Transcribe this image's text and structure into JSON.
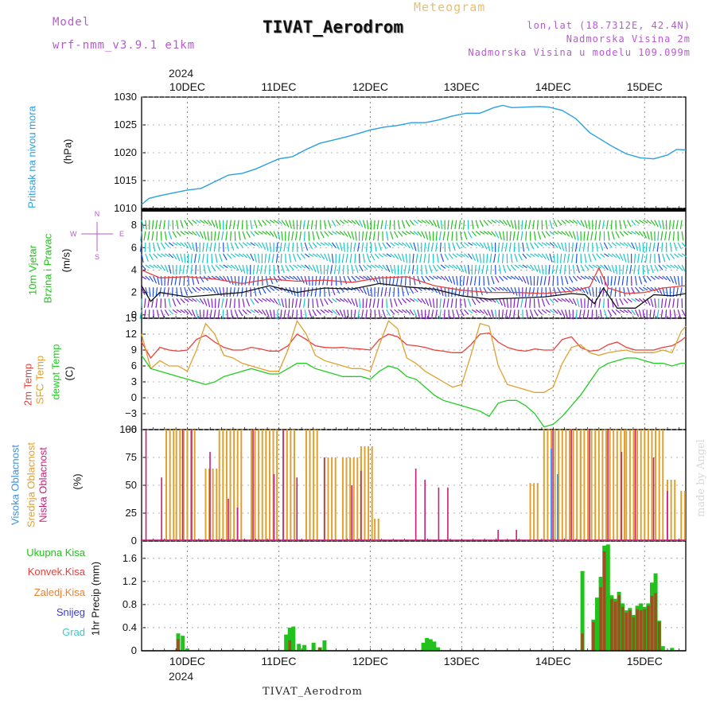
{
  "header": {
    "model_label": "Model",
    "model_name": "wrf-nmm_v3.9.1  e1km",
    "product": "Meteogram",
    "station": "TIVAT_Aerodrom",
    "lonlat": "lon,lat (18.7312E, 42.4N)",
    "elevation": "Nadmorska Visina 2m",
    "model_elevation": "Nadmorska Visina u modelu 109.099m"
  },
  "footer": {
    "station": "TIVAT_Aerodrom",
    "credit": "made by Angel"
  },
  "colors": {
    "pressure": "#2aa0e0",
    "wind_green": "#22c11c",
    "wind_cyan": "#18c8c8",
    "wind_blue": "#2050e8",
    "wind_purple": "#8020c8",
    "temp2m": "#e8403a",
    "sfc_temp": "#e0a030",
    "dewpt": "#22cc22",
    "cloud_high": "#3a90e0",
    "cloud_mid": "#e0a030",
    "cloud_low": "#c8207a",
    "precip_total": "#22c11c",
    "precip_conv": "#e8403a",
    "precip_strat": "#f08030",
    "snow": "#3a3ae0",
    "graupel": "#40c8c8"
  },
  "x_axis": {
    "year": "2024",
    "day_labels": [
      "10DEC",
      "11DEC",
      "12DEC",
      "13DEC",
      "14DEC",
      "15DEC"
    ],
    "range_days": [
      -0.5,
      5.45
    ]
  },
  "chart_data": [
    {
      "type": "line",
      "name": "pressure",
      "ylabel_main": "Pritisak na nivou mora",
      "ylabel_unit": "(hPa)",
      "ylim": [
        1010,
        1030
      ],
      "yticks": [
        1010,
        1015,
        1020,
        1025,
        1030
      ],
      "x": [
        -0.5,
        -0.42,
        -0.3,
        -0.15,
        0,
        0.15,
        0.3,
        0.45,
        0.6,
        0.75,
        0.9,
        1.0,
        1.15,
        1.3,
        1.45,
        1.6,
        1.75,
        1.9,
        2.0,
        2.15,
        2.3,
        2.45,
        2.6,
        2.75,
        2.9,
        3.05,
        3.2,
        3.35,
        3.45,
        3.55,
        3.7,
        3.85,
        3.95,
        4.1,
        4.25,
        4.4,
        4.5,
        4.65,
        4.8,
        4.95,
        5.1,
        5.25,
        5.35,
        5.45
      ],
      "y": [
        1010.7,
        1011.8,
        1012.3,
        1012.8,
        1013.3,
        1013.6,
        1014.8,
        1016.0,
        1016.3,
        1017.1,
        1018.2,
        1018.9,
        1019.3,
        1020.6,
        1021.7,
        1022.3,
        1022.9,
        1023.6,
        1024.1,
        1024.6,
        1024.9,
        1025.4,
        1025.4,
        1025.9,
        1026.6,
        1027.1,
        1027.1,
        1028.1,
        1028.5,
        1028.1,
        1028.2,
        1028.3,
        1028.2,
        1027.6,
        1026.1,
        1023.6,
        1022.6,
        1021.1,
        1019.8,
        1019.1,
        1018.9,
        1019.6,
        1020.6,
        1020.5
      ]
    },
    {
      "type": "line",
      "name": "wind",
      "ylabel_main": "10m Vjetar",
      "ylabel_sub": "Brzina i Pravac",
      "ylabel_unit": "(m/s)",
      "compass_labels": [
        "N",
        "W",
        "E",
        "S"
      ],
      "ylim": [
        -0.3,
        9.5
      ],
      "yticks": [
        0,
        2,
        4,
        6,
        8
      ],
      "series": [
        {
          "name": "speed",
          "x": [
            -0.5,
            -0.4,
            -0.3,
            0,
            0.3,
            0.6,
            0.9,
            1.2,
            1.5,
            1.8,
            2.1,
            2.4,
            2.7,
            3.0,
            3.3,
            3.6,
            3.9,
            4.2,
            4.35,
            4.45,
            4.55,
            4.7,
            4.9,
            5.1,
            5.3,
            5.45
          ],
          "y": [
            2.6,
            1.2,
            2.0,
            1.6,
            1.8,
            2.0,
            2.6,
            2.0,
            2.4,
            2.3,
            2.8,
            2.5,
            2.3,
            1.7,
            1.4,
            1.5,
            1.6,
            1.9,
            1.8,
            1.0,
            2.4,
            0.6,
            0.6,
            1.8,
            1.7,
            1.9
          ]
        },
        {
          "name": "gust",
          "x": [
            -0.5,
            -0.3,
            0,
            0.3,
            0.6,
            0.9,
            1.2,
            1.5,
            1.8,
            2.1,
            2.4,
            2.7,
            3.0,
            3.3,
            3.6,
            3.9,
            4.2,
            4.4,
            4.5,
            4.6,
            4.8,
            5.0,
            5.2,
            5.45
          ],
          "y": [
            4.0,
            3.3,
            3.4,
            3.2,
            2.8,
            3.2,
            3.0,
            3.1,
            2.9,
            3.3,
            3.4,
            2.6,
            2.2,
            2.0,
            2.0,
            1.9,
            2.1,
            2.5,
            4.2,
            2.4,
            1.9,
            2.0,
            2.4,
            2.6
          ]
        }
      ]
    },
    {
      "type": "line",
      "name": "temperature",
      "ylabel_main": "2m Temp",
      "ylabel_sub": "SFC Temp",
      "ylabel_sub2": "dewpt Temp",
      "ylabel_unit": "(C)",
      "ylim": [
        -6,
        15
      ],
      "yticks": [
        -6,
        -3,
        0,
        3,
        6,
        9,
        12,
        15
      ],
      "x": [
        -0.5,
        -0.4,
        -0.3,
        -0.2,
        -0.1,
        0,
        0.1,
        0.2,
        0.3,
        0.4,
        0.5,
        0.6,
        0.7,
        0.8,
        0.9,
        1.0,
        1.1,
        1.2,
        1.3,
        1.4,
        1.5,
        1.6,
        1.7,
        1.8,
        1.9,
        2.0,
        2.1,
        2.2,
        2.3,
        2.4,
        2.5,
        2.6,
        2.7,
        2.8,
        2.9,
        3.0,
        3.1,
        3.2,
        3.3,
        3.4,
        3.5,
        3.6,
        3.7,
        3.8,
        3.9,
        4.0,
        4.1,
        4.2,
        4.3,
        4.4,
        4.5,
        4.6,
        4.7,
        4.8,
        4.9,
        5.0,
        5.1,
        5.2,
        5.3,
        5.4,
        5.45
      ],
      "series": [
        {
          "name": "2m",
          "y": [
            10.5,
            7.5,
            9.5,
            9.0,
            8.8,
            9.0,
            11.0,
            11.8,
            10.5,
            9.5,
            9.0,
            9.0,
            9.5,
            9.2,
            8.8,
            8.8,
            9.8,
            12.0,
            11.0,
            9.8,
            9.5,
            9.4,
            9.5,
            9.3,
            9.2,
            9.0,
            11.0,
            12.0,
            11.5,
            10.0,
            9.8,
            9.5,
            9.0,
            8.8,
            8.5,
            8.5,
            10.0,
            12.0,
            12.2,
            10.5,
            9.5,
            9.0,
            8.8,
            9.2,
            9.0,
            9.0,
            11.0,
            11.5,
            9.5,
            8.8,
            9.0,
            10.0,
            10.5,
            9.5,
            9.0,
            9.0,
            9.0,
            9.5,
            9.8,
            10.8,
            11.5
          ]
        },
        {
          "name": "sfc",
          "y": [
            12.0,
            5.5,
            7.0,
            6.0,
            6.0,
            5.0,
            9.0,
            14.0,
            12.0,
            8.0,
            7.5,
            6.5,
            6.0,
            5.5,
            5.0,
            5.0,
            9.0,
            14.5,
            12.0,
            8.0,
            7.0,
            6.5,
            6.0,
            5.5,
            5.5,
            5.0,
            10.0,
            14.5,
            13.0,
            7.5,
            6.5,
            5.0,
            4.0,
            3.0,
            2.0,
            2.5,
            8.0,
            14.0,
            13.5,
            6.0,
            2.5,
            2.0,
            1.5,
            1.0,
            1.0,
            2.0,
            6.5,
            9.5,
            10.0,
            8.5,
            8.0,
            8.5,
            8.8,
            9.0,
            8.5,
            8.5,
            8.5,
            9.0,
            8.5,
            12.5,
            13.5
          ]
        },
        {
          "name": "dewpt",
          "y": [
            8.0,
            5.5,
            5.0,
            4.5,
            4.0,
            3.5,
            3.0,
            2.5,
            3.0,
            4.0,
            4.5,
            5.0,
            5.5,
            5.0,
            4.5,
            4.5,
            5.5,
            6.5,
            6.5,
            5.5,
            5.0,
            4.5,
            4.0,
            4.0,
            4.0,
            3.5,
            5.0,
            6.0,
            5.5,
            4.0,
            3.5,
            2.0,
            0.5,
            -0.5,
            -1.0,
            -1.5,
            -2.0,
            -2.5,
            -3.5,
            -1.0,
            -0.5,
            -0.5,
            -1.5,
            -3.0,
            -5.5,
            -5.0,
            -3.5,
            -1.5,
            0.5,
            3.0,
            5.5,
            6.5,
            7.0,
            7.5,
            7.5,
            7.0,
            6.5,
            6.5,
            6.0,
            6.5,
            6.5
          ]
        }
      ]
    },
    {
      "type": "bar",
      "name": "clouds",
      "ylabel_main": "Visoka Oblacnost",
      "ylabel_sub": "Srednja Oblacnost",
      "ylabel_sub2": "Niska Oblacnost",
      "ylabel_unit": "(%)",
      "ylim": [
        0,
        100
      ],
      "yticks": [
        0,
        25,
        50,
        75,
        100
      ],
      "series": [
        {
          "name": "mid",
          "segments": [
            {
              "x0": -0.23,
              "x1": -0.14,
              "v": 100
            },
            {
              "x0": -0.12,
              "x1": 0.1,
              "v": 100
            },
            {
              "x0": 0.2,
              "x1": 0.32,
              "v": 65
            },
            {
              "x0": 0.35,
              "x1": 0.6,
              "v": 100
            },
            {
              "x0": 0.7,
              "x1": 1.0,
              "v": 100
            },
            {
              "x0": 1.05,
              "x1": 1.2,
              "v": 100
            },
            {
              "x0": 1.3,
              "x1": 1.45,
              "v": 100
            },
            {
              "x0": 1.5,
              "x1": 1.65,
              "v": 75
            },
            {
              "x0": 1.7,
              "x1": 1.9,
              "v": 75
            },
            {
              "x0": 1.9,
              "x1": 2.05,
              "v": 85
            },
            {
              "x0": 2.05,
              "x1": 2.1,
              "v": 20
            },
            {
              "x0": 3.3,
              "x1": 3.55,
              "v": 0
            },
            {
              "x0": 3.75,
              "x1": 3.85,
              "v": 52
            },
            {
              "x0": 3.9,
              "x1": 4.3,
              "v": 100
            },
            {
              "x0": 4.3,
              "x1": 4.8,
              "v": 100
            },
            {
              "x0": 4.8,
              "x1": 5.2,
              "v": 100
            },
            {
              "x0": 5.25,
              "x1": 5.35,
              "v": 55
            },
            {
              "x0": 5.4,
              "x1": 5.45,
              "v": 45
            }
          ]
        },
        {
          "name": "low",
          "spikes": [
            {
              "x": -0.45,
              "v": 100
            },
            {
              "x": -0.28,
              "v": 57
            },
            {
              "x": -0.05,
              "v": 100
            },
            {
              "x": 0.05,
              "v": 100
            },
            {
              "x": 0.25,
              "v": 80
            },
            {
              "x": 0.45,
              "v": 38
            },
            {
              "x": 0.55,
              "v": 30
            },
            {
              "x": 0.72,
              "v": 100
            },
            {
              "x": 0.95,
              "v": 60
            },
            {
              "x": 1.05,
              "v": 100
            },
            {
              "x": 1.2,
              "v": 57
            },
            {
              "x": 1.5,
              "v": 75
            },
            {
              "x": 1.8,
              "v": 50
            },
            {
              "x": 1.9,
              "v": 63
            },
            {
              "x": 2.5,
              "v": 65
            },
            {
              "x": 2.6,
              "v": 55
            },
            {
              "x": 2.75,
              "v": 48
            },
            {
              "x": 2.85,
              "v": 48
            },
            {
              "x": 3.4,
              "v": 10
            },
            {
              "x": 3.6,
              "v": 10
            },
            {
              "x": 4.0,
              "v": 100
            },
            {
              "x": 4.2,
              "v": 100
            },
            {
              "x": 4.4,
              "v": 100
            },
            {
              "x": 4.6,
              "v": 100
            },
            {
              "x": 4.75,
              "v": 80
            },
            {
              "x": 4.9,
              "v": 100
            },
            {
              "x": 5.1,
              "v": 75
            },
            {
              "x": 5.25,
              "v": 45
            }
          ]
        },
        {
          "name": "high",
          "spikes": [
            {
              "x": 3.98,
              "v": 83
            },
            {
              "x": 4.05,
              "v": 60
            }
          ]
        }
      ]
    },
    {
      "type": "bar",
      "name": "precipitation",
      "legend": [
        "Ukupna  Kisa",
        "Konvek.Kisa",
        "Zaledj.Kisa",
        "Snijeg",
        "Grad"
      ],
      "ylabel": "1hr Precip (mm)",
      "ylim": [
        0,
        1.9
      ],
      "yticks": [
        0,
        0.4,
        0.8,
        1.2,
        1.6
      ],
      "series": [
        {
          "name": "total",
          "bars": [
            {
              "x": -0.1,
              "v": 0.3
            },
            {
              "x": -0.05,
              "v": 0.26
            },
            {
              "x": 0.0,
              "v": 0.04
            },
            {
              "x": 1.08,
              "v": 0.28
            },
            {
              "x": 1.12,
              "v": 0.4
            },
            {
              "x": 1.16,
              "v": 0.42
            },
            {
              "x": 1.22,
              "v": 0.12
            },
            {
              "x": 1.28,
              "v": 0.1
            },
            {
              "x": 1.38,
              "v": 0.14
            },
            {
              "x": 1.45,
              "v": 0.06
            },
            {
              "x": 1.5,
              "v": 0.18
            },
            {
              "x": 2.58,
              "v": 0.14
            },
            {
              "x": 2.62,
              "v": 0.22
            },
            {
              "x": 2.66,
              "v": 0.2
            },
            {
              "x": 2.7,
              "v": 0.16
            },
            {
              "x": 2.74,
              "v": 0.06
            },
            {
              "x": 4.32,
              "v": 1.38
            },
            {
              "x": 4.44,
              "v": 0.54
            },
            {
              "x": 4.48,
              "v": 0.92
            },
            {
              "x": 4.52,
              "v": 1.28
            },
            {
              "x": 4.56,
              "v": 1.82
            },
            {
              "x": 4.6,
              "v": 1.84
            },
            {
              "x": 4.64,
              "v": 0.96
            },
            {
              "x": 4.68,
              "v": 0.9
            },
            {
              "x": 4.72,
              "v": 1.02
            },
            {
              "x": 4.76,
              "v": 0.82
            },
            {
              "x": 4.8,
              "v": 0.7
            },
            {
              "x": 4.84,
              "v": 0.74
            },
            {
              "x": 4.88,
              "v": 0.62
            },
            {
              "x": 4.92,
              "v": 0.78
            },
            {
              "x": 4.96,
              "v": 0.82
            },
            {
              "x": 5.0,
              "v": 0.76
            },
            {
              "x": 5.04,
              "v": 0.82
            },
            {
              "x": 5.08,
              "v": 1.18
            },
            {
              "x": 5.12,
              "v": 1.34
            },
            {
              "x": 5.16,
              "v": 0.52
            },
            {
              "x": 5.2,
              "v": 0.08
            },
            {
              "x": 5.3,
              "v": 0.05
            }
          ]
        },
        {
          "name": "convective",
          "bars": [
            {
              "x": -0.1,
              "v": 0.2
            },
            {
              "x": 1.12,
              "v": 0.18
            },
            {
              "x": 1.45,
              "v": 0.05
            },
            {
              "x": 4.32,
              "v": 0.3
            },
            {
              "x": 4.44,
              "v": 0.5
            },
            {
              "x": 4.52,
              "v": 1.1
            },
            {
              "x": 4.56,
              "v": 1.72
            },
            {
              "x": 4.64,
              "v": 0.9
            },
            {
              "x": 4.68,
              "v": 0.85
            },
            {
              "x": 4.72,
              "v": 0.96
            },
            {
              "x": 4.76,
              "v": 0.76
            },
            {
              "x": 4.8,
              "v": 0.66
            },
            {
              "x": 4.84,
              "v": 0.7
            },
            {
              "x": 4.88,
              "v": 0.58
            },
            {
              "x": 4.92,
              "v": 0.72
            },
            {
              "x": 4.96,
              "v": 0.7
            },
            {
              "x": 5.0,
              "v": 0.72
            },
            {
              "x": 5.04,
              "v": 0.78
            },
            {
              "x": 5.08,
              "v": 0.95
            },
            {
              "x": 5.12,
              "v": 1.0
            },
            {
              "x": 5.16,
              "v": 0.5
            }
          ]
        }
      ]
    }
  ]
}
